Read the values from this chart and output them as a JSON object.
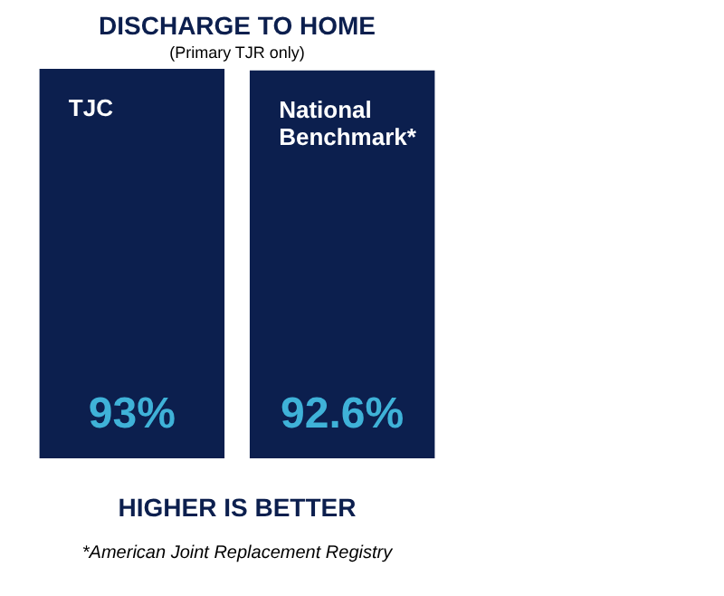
{
  "chart_data": {
    "type": "bar",
    "title": "DISCHARGE TO HOME",
    "subtitle": "(Primary TJR only)",
    "categories": [
      "TJC",
      "National Benchmark*"
    ],
    "values": [
      93,
      92.6
    ],
    "value_labels": [
      "93%",
      "92.6%"
    ],
    "color": "#0c1f4e",
    "tick_labels": false,
    "annotations": [
      "HIGHER IS BETTER",
      "*American Joint Replacement Registry"
    ]
  }
}
